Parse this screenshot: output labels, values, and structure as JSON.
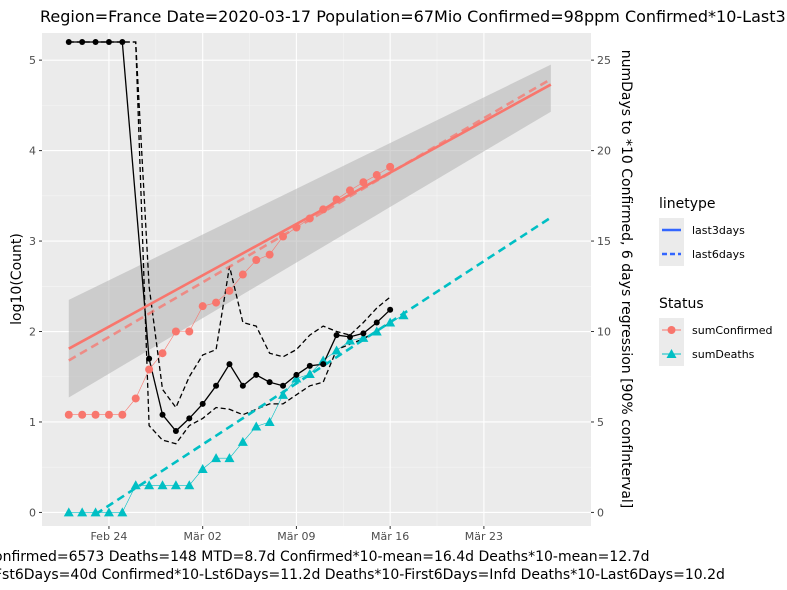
{
  "chart_data": {
    "type": "line",
    "title": "Region=France Date=2020-03-17  Population=67Mio Confirmed=98ppm  Confirmed*10-Last3",
    "caption_line1": "onfirmed=6573 Deaths=148  MTD=8.7d   Confirmed*10-mean=16.4d  Deaths*10-mean=12.7d",
    "caption_line2": "Fst6Days=40d  Confirmed*10-Lst6Days=11.2d     Deaths*10-First6Days=Infd  Deaths*10-Last6Days=10.2d",
    "ylabel": "log10(Count)",
    "y2label": "numDays to *10 Confirmed, 6 days regression [90% confInterval]",
    "xlim": [
      "2020-02-19",
      "2020-03-31"
    ],
    "ylim": [
      -0.15,
      5.3
    ],
    "y2lim": [
      -0.75,
      26.5
    ],
    "grid": true,
    "x_ticks": [
      {
        "date": "2020-02-24",
        "label": "Feb 24"
      },
      {
        "date": "2020-03-02",
        "label": "Mär 02"
      },
      {
        "date": "2020-03-09",
        "label": "Mär 09"
      },
      {
        "date": "2020-03-16",
        "label": "Mär 16"
      },
      {
        "date": "2020-03-23",
        "label": "Mär 23"
      }
    ],
    "y_ticks": [
      0,
      1,
      2,
      3,
      4,
      5
    ],
    "y2_ticks": [
      0,
      5,
      10,
      15,
      20,
      25
    ],
    "dates": [
      "2020-02-21",
      "2020-02-22",
      "2020-02-23",
      "2020-02-24",
      "2020-02-25",
      "2020-02-26",
      "2020-02-27",
      "2020-02-28",
      "2020-02-29",
      "2020-03-01",
      "2020-03-02",
      "2020-03-03",
      "2020-03-04",
      "2020-03-05",
      "2020-03-06",
      "2020-03-07",
      "2020-03-08",
      "2020-03-09",
      "2020-03-10",
      "2020-03-11",
      "2020-03-12",
      "2020-03-13",
      "2020-03-14",
      "2020-03-15",
      "2020-03-16",
      "2020-03-17"
    ],
    "series": [
      {
        "name": "sumConfirmed",
        "axis": "left",
        "color": "#F8766D",
        "marker": "circle",
        "values": [
          1.08,
          1.08,
          1.08,
          1.08,
          1.08,
          1.26,
          1.58,
          1.76,
          2.0,
          2.0,
          2.28,
          2.32,
          2.45,
          2.63,
          2.79,
          2.85,
          3.05,
          3.15,
          3.25,
          3.35,
          3.46,
          3.56,
          3.65,
          3.73,
          3.82,
          null
        ]
      },
      {
        "name": "sumDeaths",
        "axis": "left",
        "color": "#00BFC4",
        "marker": "triangle",
        "values": [
          0,
          0,
          0,
          0,
          0,
          0.3,
          0.3,
          0.3,
          0.3,
          0.3,
          0.48,
          0.6,
          0.6,
          0.78,
          0.95,
          1.0,
          1.3,
          1.48,
          1.53,
          1.68,
          1.79,
          1.9,
          1.93,
          2.0,
          2.1,
          2.18
        ]
      },
      {
        "name": "daysToTenfold",
        "axis": "right",
        "color": "#000000",
        "marker": "dot",
        "values": [
          26,
          26,
          26,
          26,
          26,
          null,
          8.5,
          5.4,
          4.5,
          5.2,
          6.0,
          7.0,
          8.2,
          7.0,
          7.6,
          7.2,
          7.0,
          7.6,
          8.1,
          8.2,
          9.8,
          9.7,
          9.9,
          10.5,
          11.2,
          null
        ]
      },
      {
        "name": "ciLower",
        "axis": "right",
        "color": "#000000",
        "style": "dashed",
        "values": [
          26,
          26,
          26,
          26,
          26,
          26,
          4.8,
          4.0,
          3.8,
          4.8,
          5.2,
          5.8,
          5.7,
          5.4,
          5.7,
          6.0,
          6.0,
          6.5,
          7.0,
          7.2,
          9.0,
          9.3,
          9.6,
          10.0,
          10.5,
          null
        ]
      },
      {
        "name": "ciUpper",
        "axis": "right",
        "color": "#000000",
        "style": "dashed",
        "values": [
          26,
          26,
          26,
          26,
          26,
          26,
          12.5,
          6.8,
          5.8,
          7.5,
          8.7,
          9.0,
          13.6,
          10.5,
          10.3,
          8.8,
          8.6,
          9.0,
          9.8,
          10.3,
          10.0,
          9.8,
          10.5,
          11.3,
          11.9,
          null
        ]
      }
    ],
    "regressions": [
      {
        "linetype": "last3days",
        "color": "#F8766D",
        "style": "solid",
        "from": [
          "2020-02-21",
          1.81
        ],
        "to": [
          "2020-03-28",
          4.73
        ],
        "band_start": [
          1.27,
          2.35
        ],
        "band_end": [
          4.43,
          4.95
        ],
        "band_color": "#b3b3b3"
      },
      {
        "linetype": "last6days",
        "color": "#F8766D",
        "style": "dashed",
        "from": [
          "2020-02-21",
          1.68
        ],
        "to": [
          "2020-03-28",
          4.79
        ]
      },
      {
        "linetype": "last6days",
        "color": "#00BFC4",
        "style": "dashed",
        "from": [
          "2020-02-23",
          -0.02
        ],
        "to": [
          "2020-03-28",
          3.26
        ]
      }
    ],
    "legend": {
      "position": "right",
      "linetype_title": "linetype",
      "linetype_items": [
        "last3days",
        "last6days"
      ],
      "status_title": "Status",
      "status_items": [
        "sumConfirmed",
        "sumDeaths"
      ],
      "key_color": "#3366FF"
    }
  }
}
